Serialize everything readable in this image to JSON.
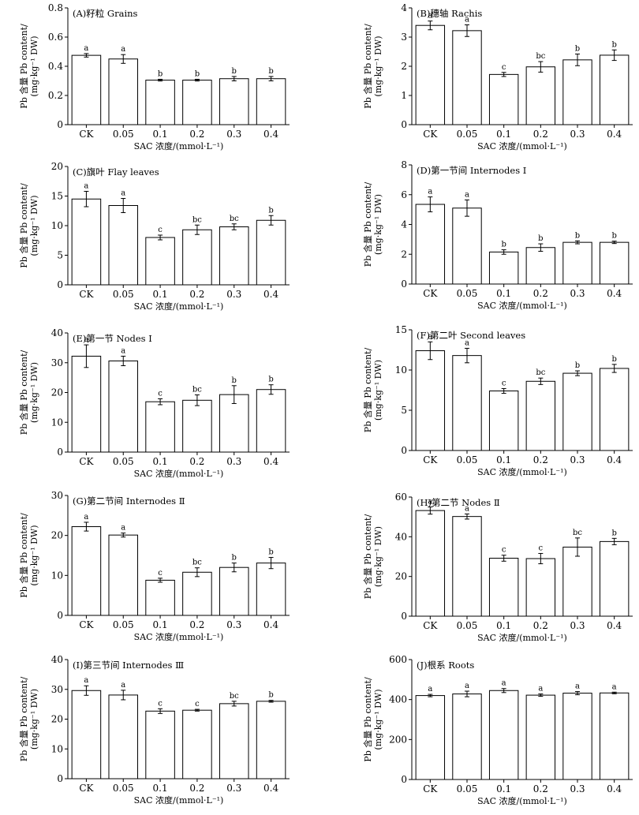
{
  "figure": {
    "xlabel": "SAC 浓度/(mmol·L⁻¹)",
    "ylabel_line1": "Pb 含量 Pb content/",
    "ylabel_line2": "(mg·kg⁻¹ DW)"
  },
  "chart_data": [
    {
      "type": "bar",
      "title": "(A)籽粒 Grains",
      "categories": [
        "CK",
        "0.05",
        "0.1",
        "0.2",
        "0.3",
        "0.4"
      ],
      "values": [
        0.475,
        0.45,
        0.305,
        0.305,
        0.315,
        0.315
      ],
      "errors": [
        0.012,
        0.03,
        0.006,
        0.006,
        0.015,
        0.015
      ],
      "significance": [
        "a",
        "a",
        "b",
        "b",
        "b",
        "b"
      ],
      "yticks": [
        0,
        0.2,
        0.4,
        0.6,
        0.8
      ],
      "ytick_labels": [
        "0",
        "0.2",
        "0.4",
        "0.6",
        "0.8"
      ],
      "ylim": [
        0,
        0.8
      ],
      "xlabel": "SAC 浓度/(mmol·L⁻¹)",
      "ylabel": "Pb 含量 Pb content/(mg·kg⁻¹ DW)"
    },
    {
      "type": "bar",
      "title": "(B)穗轴 Rachis",
      "categories": [
        "CK",
        "0.05",
        "0.1",
        "0.2",
        "0.3",
        "0.4"
      ],
      "values": [
        3.4,
        3.22,
        1.72,
        1.98,
        2.22,
        2.38
      ],
      "errors": [
        0.15,
        0.2,
        0.07,
        0.18,
        0.2,
        0.18
      ],
      "significance": [
        "a",
        "a",
        "c",
        "bc",
        "b",
        "b"
      ],
      "yticks": [
        0,
        1,
        2,
        3,
        4
      ],
      "ytick_labels": [
        "0",
        "1",
        "2",
        "3",
        "4"
      ],
      "ylim": [
        0,
        4
      ],
      "xlabel": "SAC 浓度/(mmol·L⁻¹)",
      "ylabel": "Pb 含量 Pb content/(mg·kg⁻¹ DW)"
    },
    {
      "type": "bar",
      "title": "(C)旗叶 Flay leaves",
      "categories": [
        "CK",
        "0.05",
        "0.1",
        "0.2",
        "0.3",
        "0.4"
      ],
      "values": [
        14.5,
        13.4,
        8.0,
        9.3,
        9.8,
        10.9
      ],
      "errors": [
        1.3,
        1.2,
        0.4,
        0.8,
        0.5,
        0.8
      ],
      "significance": [
        "a",
        "a",
        "c",
        "bc",
        "bc",
        "b"
      ],
      "yticks": [
        0,
        5,
        10,
        15,
        20
      ],
      "ytick_labels": [
        "0",
        "5",
        "10",
        "15",
        "20"
      ],
      "ylim": [
        0,
        20
      ],
      "xlabel": "SAC 浓度/(mmol·L⁻¹)",
      "ylabel": "Pb 含量 Pb content/(mg·kg⁻¹ DW)"
    },
    {
      "type": "bar",
      "title": "(D)第一节间 Internodes Ⅰ",
      "categories": [
        "CK",
        "0.05",
        "0.1",
        "0.2",
        "0.3",
        "0.4"
      ],
      "values": [
        5.35,
        5.1,
        2.15,
        2.45,
        2.8,
        2.8
      ],
      "errors": [
        0.5,
        0.55,
        0.15,
        0.25,
        0.1,
        0.08
      ],
      "significance": [
        "a",
        "a",
        "b",
        "b",
        "b",
        "b"
      ],
      "yticks": [
        0,
        2,
        4,
        6,
        8
      ],
      "ytick_labels": [
        "0",
        "2",
        "4",
        "6",
        "8"
      ],
      "ylim": [
        0,
        8
      ],
      "xlabel": "SAC 浓度/(mmol·L⁻¹)",
      "ylabel": "Pb 含量 Pb content/(mg·kg⁻¹ DW)"
    },
    {
      "type": "bar",
      "title": "(E)第一节 Nodes Ⅰ",
      "categories": [
        "CK",
        "0.05",
        "0.1",
        "0.2",
        "0.3",
        "0.4"
      ],
      "values": [
        32.2,
        30.6,
        16.9,
        17.4,
        19.3,
        21.0
      ],
      "errors": [
        3.8,
        1.6,
        1.0,
        1.8,
        3.0,
        1.6
      ],
      "significance": [
        "a",
        "a",
        "c",
        "bc",
        "b",
        "b"
      ],
      "yticks": [
        0,
        10,
        20,
        30,
        40
      ],
      "ytick_labels": [
        "0",
        "10",
        "20",
        "30",
        "40"
      ],
      "ylim": [
        0,
        40
      ],
      "xlabel": "SAC 浓度/(mmol·L⁻¹)",
      "ylabel": "Pb 含量 Pb content/(mg·kg⁻¹ DW)"
    },
    {
      "type": "bar",
      "title": "(F)第二叶 Second leaves",
      "categories": [
        "CK",
        "0.05",
        "0.1",
        "0.2",
        "0.3",
        "0.4"
      ],
      "values": [
        12.4,
        11.8,
        7.4,
        8.6,
        9.6,
        10.2
      ],
      "errors": [
        1.1,
        0.9,
        0.3,
        0.4,
        0.3,
        0.5
      ],
      "significance": [
        "a",
        "a",
        "c",
        "bc",
        "b",
        "b"
      ],
      "yticks": [
        0,
        5,
        10,
        15
      ],
      "ytick_labels": [
        "0",
        "5",
        "10",
        "15"
      ],
      "ylim": [
        0,
        15
      ],
      "xlabel": "SAC 浓度/(mmol·L⁻¹)",
      "ylabel": "Pb 含量 Pb content/(mg·kg⁻¹ DW)"
    },
    {
      "type": "bar",
      "title": "(G)第二节间 Internodes Ⅱ",
      "categories": [
        "CK",
        "0.05",
        "0.1",
        "0.2",
        "0.3",
        "0.4"
      ],
      "values": [
        22.2,
        20.1,
        8.8,
        10.8,
        12.0,
        13.1
      ],
      "errors": [
        1.1,
        0.5,
        0.5,
        1.1,
        1.1,
        1.4
      ],
      "significance": [
        "a",
        "a",
        "c",
        "bc",
        "b",
        "b"
      ],
      "yticks": [
        0,
        10,
        20,
        30
      ],
      "ytick_labels": [
        "0",
        "10",
        "20",
        "30"
      ],
      "ylim": [
        0,
        30
      ],
      "xlabel": "SAC 浓度/(mmol·L⁻¹)",
      "ylabel": "Pb 含量 Pb content/(mg·kg⁻¹ DW)"
    },
    {
      "type": "bar",
      "title": "(H)第二节 Nodes Ⅱ",
      "categories": [
        "CK",
        "0.05",
        "0.1",
        "0.2",
        "0.3",
        "0.4"
      ],
      "values": [
        53.2,
        50.2,
        29.2,
        29.0,
        34.8,
        37.6
      ],
      "errors": [
        1.8,
        1.3,
        1.5,
        2.6,
        4.6,
        1.6
      ],
      "significance": [
        "a",
        "a",
        "c",
        "c",
        "bc",
        "b"
      ],
      "yticks": [
        0,
        20,
        40,
        60
      ],
      "ytick_labels": [
        "0",
        "20",
        "40",
        "60"
      ],
      "ylim": [
        0,
        60
      ],
      "xlabel": "SAC 浓度/(mmol·L⁻¹)",
      "ylabel": "Pb 含量 Pb content/(mg·kg⁻¹ DW)"
    },
    {
      "type": "bar",
      "title": "(I)第三节间 Internodes Ⅲ",
      "categories": [
        "CK",
        "0.05",
        "0.1",
        "0.2",
        "0.3",
        "0.4"
      ],
      "values": [
        29.6,
        28.1,
        22.7,
        23.0,
        25.2,
        26.0
      ],
      "errors": [
        1.6,
        1.6,
        0.8,
        0.3,
        0.8,
        0.3
      ],
      "significance": [
        "a",
        "a",
        "c",
        "c",
        "bc",
        "b"
      ],
      "yticks": [
        0,
        10,
        20,
        30,
        40
      ],
      "ytick_labels": [
        "0",
        "10",
        "20",
        "30",
        "40"
      ],
      "ylim": [
        0,
        40
      ],
      "xlabel": "SAC 浓度/(mmol·L⁻¹)",
      "ylabel": "Pb 含量 Pb content/(mg·kg⁻¹ DW)"
    },
    {
      "type": "bar",
      "title": "(J)根系 Roots",
      "categories": [
        "CK",
        "0.05",
        "0.1",
        "0.2",
        "0.3",
        "0.4"
      ],
      "values": [
        420,
        428,
        445,
        422,
        432,
        433
      ],
      "errors": [
        6,
        14,
        10,
        6,
        8,
        4
      ],
      "significance": [
        "a",
        "a",
        "a",
        "a",
        "a",
        "a"
      ],
      "yticks": [
        0,
        200,
        400,
        600
      ],
      "ytick_labels": [
        "0",
        "200",
        "400",
        "600"
      ],
      "ylim": [
        0,
        600
      ],
      "xlabel": "SAC 浓度/(mmol·L⁻¹)",
      "ylabel": "Pb 含量 Pb content/(mg·kg⁻¹ DW)"
    }
  ]
}
